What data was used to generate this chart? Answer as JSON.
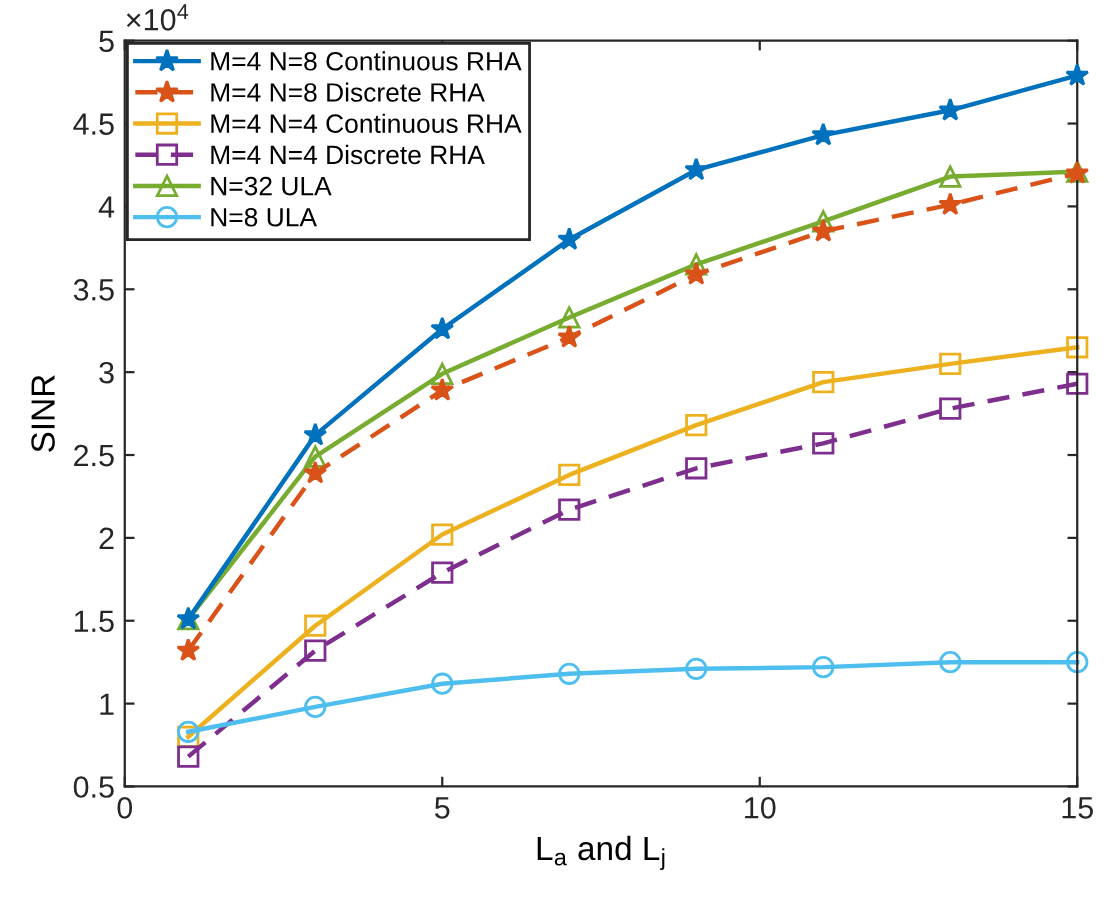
{
  "chart_data": {
    "type": "line",
    "xlabel": "L$_{a}$ and L$_{j}$",
    "ylabel": "SINR",
    "annotations": [
      "×10$^{4}$"
    ],
    "x": [
      1,
      3,
      5,
      7,
      9,
      11,
      13,
      15
    ],
    "series": [
      {
        "name": "M=4 N=8 Continuous RHA",
        "color": "#0072bd",
        "marker": "star",
        "line_style": "solid",
        "values": [
          1.51,
          2.62,
          3.26,
          3.8,
          4.22,
          4.43,
          4.58,
          4.79
        ]
      },
      {
        "name": "M=4 N=8 Discrete RHA",
        "color": "#d95319",
        "marker": "star",
        "line_style": "dashed",
        "values": [
          1.32,
          2.39,
          2.89,
          3.21,
          3.59,
          3.85,
          4.01,
          4.2
        ]
      },
      {
        "name": "M=4 N=4 Continuous RHA",
        "color": "#edb120",
        "marker": "square",
        "line_style": "solid",
        "values": [
          0.8,
          1.47,
          2.02,
          2.38,
          2.68,
          2.94,
          3.05,
          3.15
        ]
      },
      {
        "name": "M=4 N=4 Discrete RHA",
        "color": "#7e2f8e",
        "marker": "square",
        "line_style": "dashed",
        "values": [
          0.68,
          1.32,
          1.79,
          2.17,
          2.42,
          2.57,
          2.78,
          2.93
        ]
      },
      {
        "name": "N=32 ULA",
        "color": "#77ac30",
        "marker": "triangle",
        "line_style": "solid",
        "values": [
          1.51,
          2.49,
          2.99,
          3.33,
          3.65,
          3.91,
          4.18,
          4.21
        ]
      },
      {
        "name": "N=8 ULA",
        "color": "#4dbeee",
        "marker": "circle",
        "line_style": "solid",
        "values": [
          0.83,
          0.98,
          1.12,
          1.18,
          1.21,
          1.22,
          1.25,
          1.25
        ]
      }
    ],
    "xlim": [
      0,
      15
    ],
    "ylim": [
      0.5,
      5
    ],
    "xticks": [
      0,
      5,
      10,
      15
    ],
    "yticks": [
      0.5,
      1,
      1.5,
      2,
      2.5,
      3,
      3.5,
      4,
      4.5,
      5
    ],
    "grid": false,
    "legend": "top left"
  }
}
